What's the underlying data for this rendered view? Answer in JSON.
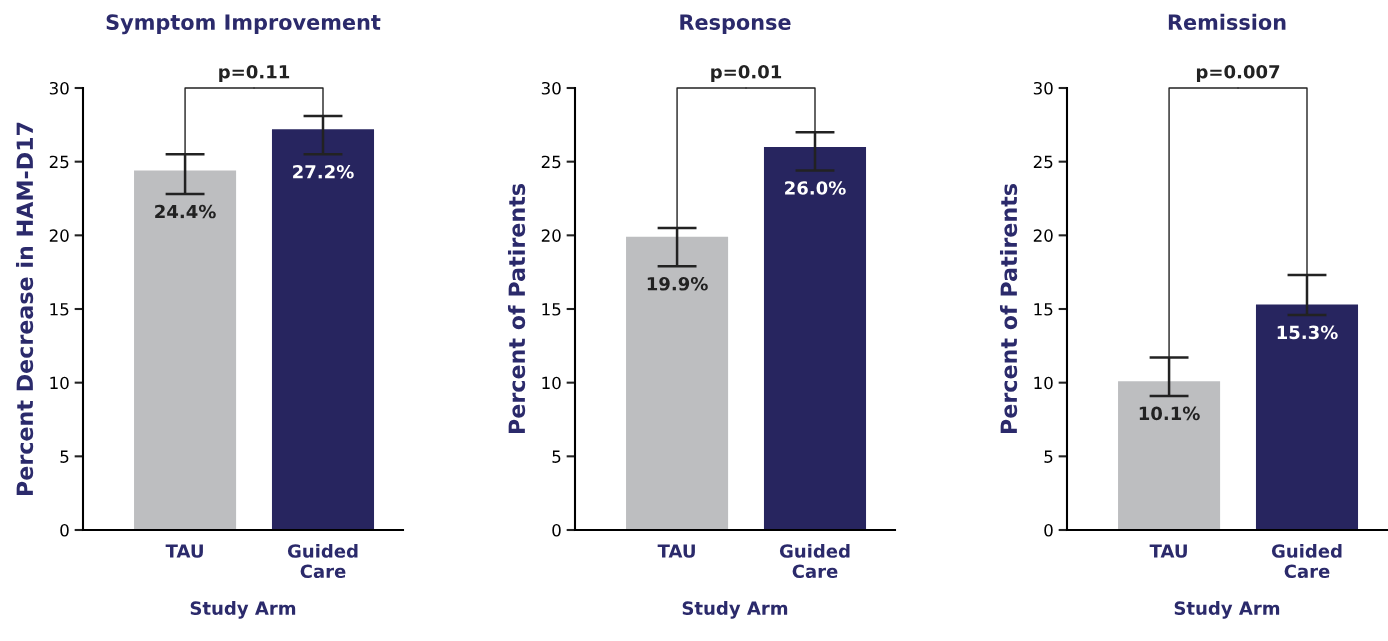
{
  "chart_data": [
    {
      "type": "bar",
      "title": "Symptom Improvement",
      "xlabel": "Study Arm",
      "ylabel": "Percent Decrease in HAM-D17",
      "categories": [
        "TAU",
        "Guided\nCare"
      ],
      "values": [
        24.4,
        27.2
      ],
      "value_labels": [
        "24.4%",
        "27.2%"
      ],
      "colors": [
        "#bdbec0",
        "#27255f"
      ],
      "errors": [
        [
          22.8,
          25.5
        ],
        [
          25.5,
          28.1
        ]
      ],
      "ylim": [
        0,
        30
      ],
      "yticks": [
        0,
        5,
        10,
        15,
        20,
        25,
        30
      ],
      "grid": false,
      "annotations": [
        {
          "text": "p=0.11",
          "x": "TAU",
          "y": 25.5
        }
      ]
    },
    {
      "type": "bar",
      "title": "Response",
      "xlabel": "Study Arm",
      "ylabel": "Percent of Patirents",
      "categories": [
        "TAU",
        "Guided\nCare"
      ],
      "values": [
        19.9,
        26.0
      ],
      "value_labels": [
        "19.9%",
        "26.0%"
      ],
      "colors": [
        "#bdbec0",
        "#27255f"
      ],
      "errors": [
        [
          17.9,
          20.5
        ],
        [
          24.4,
          27.0
        ]
      ],
      "ylim": [
        0,
        30
      ],
      "yticks": [
        0,
        5,
        10,
        15,
        20,
        25,
        30
      ],
      "grid": false,
      "annotations": [
        {
          "text": "p=0.01",
          "x": "TAU",
          "y": 20.5
        }
      ]
    },
    {
      "type": "bar",
      "title": "Remission",
      "xlabel": "Study Arm",
      "ylabel": "Percent of Patirents",
      "categories": [
        "TAU",
        "Guided\nCare"
      ],
      "values": [
        10.1,
        15.3
      ],
      "value_labels": [
        "10.1%",
        "15.3%"
      ],
      "colors": [
        "#bdbec0",
        "#27255f"
      ],
      "errors": [
        [
          9.1,
          11.7
        ],
        [
          14.6,
          17.3
        ]
      ],
      "ylim": [
        0,
        30
      ],
      "yticks": [
        0,
        5,
        10,
        15,
        20,
        25,
        30
      ],
      "grid": false,
      "annotations": [
        {
          "text": "p=0.007",
          "x": "TAU",
          "y": 11.7
        }
      ]
    }
  ]
}
